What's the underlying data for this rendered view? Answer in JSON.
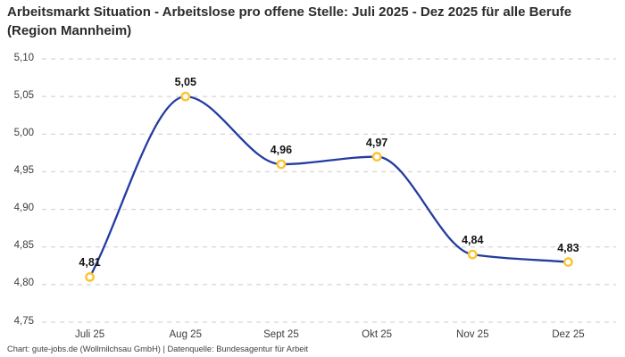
{
  "header": {
    "title": "Arbeitsmarkt Situation - Arbeitslose pro offene Stelle: Juli 2025 - Dez 2025 für alle Berufe (Region Mannheim)"
  },
  "chart_data": {
    "type": "line",
    "title": "Arbeitsmarkt Situation - Arbeitslose pro offene Stelle: Juli 2025 - Dez 2025 für alle Berufe (Region Mannheim)",
    "categories": [
      "Juli 25",
      "Aug 25",
      "Sept 25",
      "Okt 25",
      "Nov 25",
      "Dez 25"
    ],
    "values": [
      4.81,
      5.05,
      4.96,
      4.97,
      4.84,
      4.83
    ],
    "point_labels": [
      "4,81",
      "5,05",
      "4,96",
      "4,97",
      "4,84",
      "4,83"
    ],
    "xlabel": "",
    "ylabel": "",
    "ylim": [
      4.75,
      5.1
    ],
    "y_tick_values": [
      5.1,
      5.05,
      5.0,
      4.95,
      4.9,
      4.85,
      4.8,
      4.75
    ],
    "y_tick_labels": [
      "5,10",
      "5,05",
      "5,00",
      "4,95",
      "4,90",
      "4,85",
      "4,80",
      "4,75"
    ],
    "grid": "horizontal-dashed",
    "legend": "none",
    "curve": "smooth-monotone",
    "line_color": "#233ca0",
    "marker_stroke_color": "#fcc432",
    "marker_fill_color": "#ffffff",
    "grid_color": "#cccccc",
    "tick_color": "#3c3c3c",
    "point_label_color": "#141414"
  },
  "footer": {
    "text": "Chart: gute-jobs.de (Wollmilchsau GmbH) | Datenquelle: Bundesagentur für Arbeit"
  }
}
